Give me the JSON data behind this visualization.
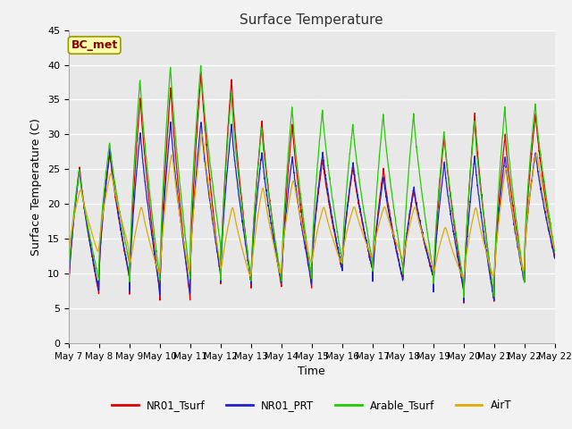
{
  "title": "Surface Temperature",
  "xlabel": "Time",
  "ylabel": "Surface Temperature (C)",
  "ylim": [
    0,
    45
  ],
  "annotation": "BC_met",
  "legend_labels": [
    "NR01_Tsurf",
    "NR01_PRT",
    "Arable_Tsurf",
    "AirT"
  ],
  "legend_colors": [
    "#dd0000",
    "#2222cc",
    "#22cc00",
    "#ddaa00"
  ],
  "bg_color": "#e8e8e8",
  "fig_bg_color": "#f2f2f2",
  "xtick_labels": [
    "May 7",
    "May 8",
    "May 9",
    "May 10",
    "May 11",
    "May 12",
    "May 13",
    "May 14",
    "May 15",
    "May 16",
    "May 17",
    "May 18",
    "May 19",
    "May 20",
    "May 21",
    "May 22",
    "May 22"
  ],
  "days": 16,
  "points_per_day": 144,
  "nro1_mins": [
    7.0,
    9.5,
    7.0,
    6.2,
    9.5,
    8.5,
    8.0,
    8.0,
    10.5,
    10.5,
    9.0,
    9.5,
    7.5,
    5.8,
    8.5,
    12.0
  ],
  "nro1_maxs": [
    25.5,
    27.5,
    35.5,
    37.0,
    39.0,
    38.0,
    32.0,
    31.5,
    26.5,
    25.5,
    25.0,
    22.0,
    30.0,
    33.0,
    30.0,
    33.0
  ],
  "prt_mins": [
    7.5,
    9.5,
    7.5,
    7.0,
    10.0,
    9.0,
    8.5,
    8.5,
    10.5,
    10.5,
    9.0,
    9.5,
    7.5,
    6.0,
    8.5,
    12.0
  ],
  "prt_maxs": [
    25.0,
    28.0,
    30.5,
    32.0,
    32.0,
    31.5,
    27.5,
    27.0,
    27.5,
    26.0,
    24.0,
    22.5,
    26.0,
    27.0,
    27.0,
    27.5
  ],
  "ara_mins": [
    9.0,
    11.5,
    9.0,
    9.0,
    14.0,
    9.0,
    9.0,
    9.0,
    11.5,
    11.5,
    10.5,
    10.0,
    8.5,
    6.5,
    8.5,
    13.0
  ],
  "ara_maxs": [
    25.0,
    29.0,
    38.0,
    40.0,
    40.0,
    36.0,
    31.0,
    34.0,
    33.5,
    31.5,
    33.0,
    33.0,
    30.5,
    32.0,
    34.0,
    34.5
  ],
  "air_mins": [
    12.5,
    13.5,
    9.5,
    9.0,
    11.0,
    9.0,
    9.0,
    11.0,
    11.0,
    12.0,
    12.0,
    11.0,
    9.0,
    9.0,
    9.0,
    13.0
  ],
  "air_maxs": [
    22.5,
    25.0,
    20.0,
    28.0,
    31.0,
    20.0,
    23.0,
    24.0,
    20.0,
    20.0,
    20.0,
    20.0,
    17.0,
    20.0,
    26.0,
    28.0
  ]
}
